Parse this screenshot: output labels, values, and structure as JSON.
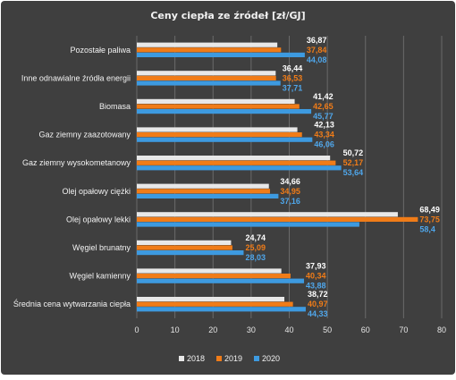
{
  "chart_data": {
    "type": "bar",
    "orientation": "horizontal",
    "title": "Ceny ciepła ze źródeł [zł/GJ]",
    "categories": [
      "Pozostałe paliwa",
      "Inne odnawialne źródła energii",
      "Biomasa",
      "Gaz ziemny zaazotowany",
      "Gaz ziemny wysokometanowy",
      "Olej opałowy ciężki",
      "Olej opałowy lekki",
      "Węgiel brunatny",
      "Węgiel kamienny",
      "Średnia cena wytwarzania ciepła"
    ],
    "series": [
      {
        "name": "2018",
        "color": "#e8e8e8",
        "label_color": "#ffffff",
        "values": [
          36.87,
          36.44,
          41.42,
          42.13,
          50.72,
          34.66,
          68.49,
          24.74,
          37.93,
          38.72
        ],
        "labels": [
          "36,87",
          "36,44",
          "41,42",
          "42,13",
          "50,72",
          "34,66",
          "68,49",
          "24,74",
          "37,93",
          "38,72"
        ]
      },
      {
        "name": "2019",
        "color": "#f07c18",
        "label_color": "#f07c18",
        "values": [
          37.84,
          36.53,
          42.65,
          43.34,
          52.17,
          34.95,
          73.75,
          25.09,
          40.34,
          40.97
        ],
        "labels": [
          "37,84",
          "36,53",
          "42,65",
          "43,34",
          "52,17",
          "34,95",
          "73,75",
          "25,09",
          "40,34",
          "40,97"
        ]
      },
      {
        "name": "2020",
        "color": "#3d9ae0",
        "label_color": "#4fa6ea",
        "values": [
          44.08,
          37.71,
          45.77,
          46.06,
          53.64,
          37.16,
          58.4,
          28.03,
          43.88,
          44.33
        ],
        "labels": [
          "44,08",
          "37,71",
          "45,77",
          "46,06",
          "53,64",
          "37,16",
          "58,4",
          "28,03",
          "43,88",
          "44,33"
        ]
      }
    ],
    "xlim": [
      0,
      80
    ],
    "ticks": [
      "0",
      "10",
      "20",
      "30",
      "40",
      "50",
      "60",
      "70",
      "80"
    ],
    "grid": true,
    "legend_position": "bottom"
  }
}
